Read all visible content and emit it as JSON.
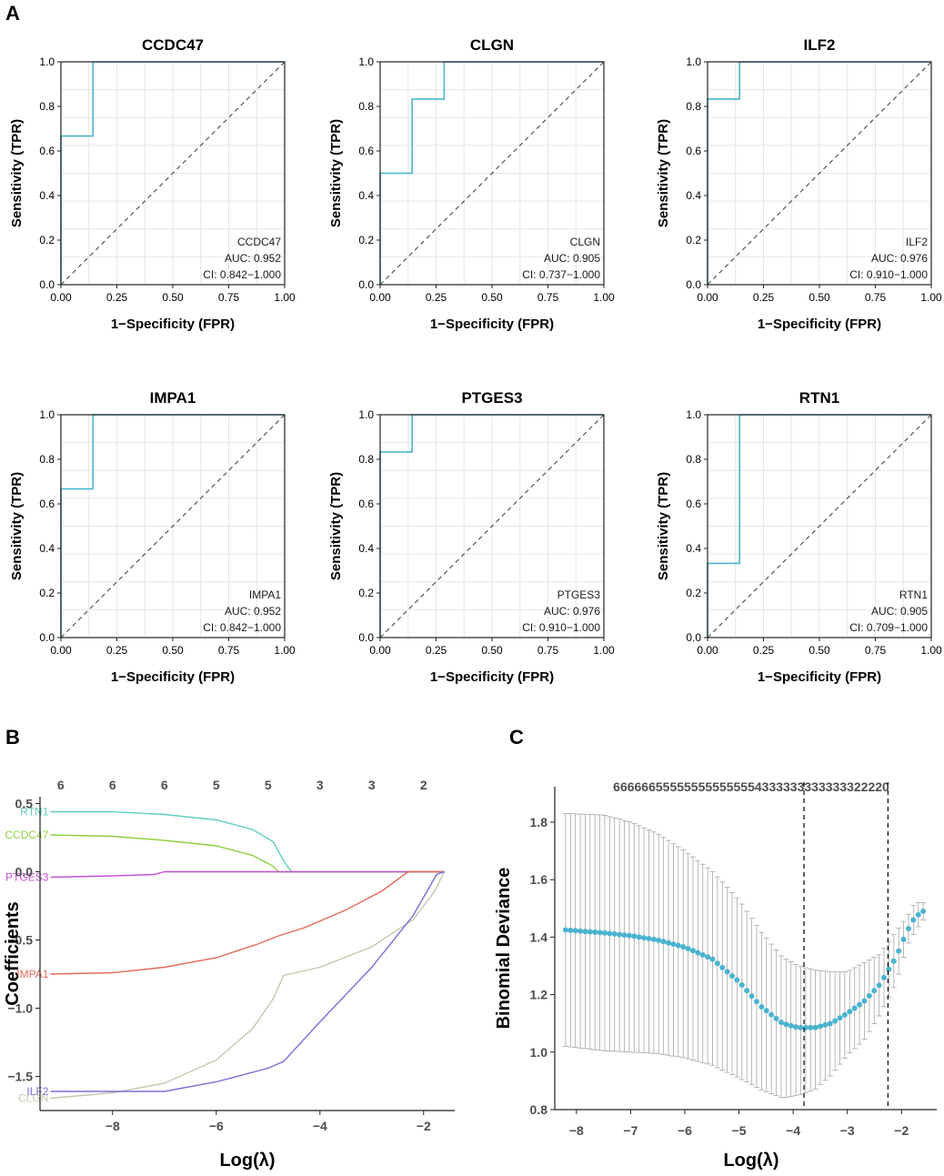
{
  "panels": {
    "a": "A",
    "b": "B",
    "c": "C"
  },
  "colors": {
    "roc": "#4ab3cf",
    "grid": "#e6e6e6",
    "cv_point": "#4ab3cf",
    "errorbar": "#a6a6a6"
  },
  "roc_common": {
    "xlabel": "1−Specificity (FPR)",
    "ylabel": "Sensitivity (TPR)",
    "xticks": [
      "0.00",
      "0.25",
      "0.50",
      "0.75",
      "1.00"
    ],
    "yticks": [
      "0.0",
      "0.2",
      "0.4",
      "0.6",
      "0.8",
      "1.0"
    ]
  },
  "chart_data": [
    {
      "type": "line",
      "title": "CCDC47",
      "gene": "CCDC47",
      "auc": "AUC: 0.952",
      "ci": "CI: 0.842−1.000",
      "xlim": [
        0,
        1
      ],
      "ylim": [
        0,
        1
      ],
      "roc": [
        [
          0,
          0
        ],
        [
          0,
          0.667
        ],
        [
          0.143,
          0.667
        ],
        [
          0.143,
          1
        ],
        [
          1,
          1
        ]
      ]
    },
    {
      "type": "line",
      "title": "CLGN",
      "gene": "CLGN",
      "auc": "AUC: 0.905",
      "ci": "CI: 0.737−1.000",
      "xlim": [
        0,
        1
      ],
      "ylim": [
        0,
        1
      ],
      "roc": [
        [
          0,
          0
        ],
        [
          0,
          0.5
        ],
        [
          0.143,
          0.5
        ],
        [
          0.143,
          0.833
        ],
        [
          0.286,
          0.833
        ],
        [
          0.286,
          1
        ],
        [
          1,
          1
        ]
      ]
    },
    {
      "type": "line",
      "title": "ILF2",
      "gene": "ILF2",
      "auc": "AUC: 0.976",
      "ci": "CI: 0.910−1.000",
      "xlim": [
        0,
        1
      ],
      "ylim": [
        0,
        1
      ],
      "roc": [
        [
          0,
          0
        ],
        [
          0,
          0.833
        ],
        [
          0.143,
          0.833
        ],
        [
          0.143,
          1
        ],
        [
          1,
          1
        ]
      ]
    },
    {
      "type": "line",
      "title": "IMPA1",
      "gene": "IMPA1",
      "auc": "AUC: 0.952",
      "ci": "CI: 0.842−1.000",
      "xlim": [
        0,
        1
      ],
      "ylim": [
        0,
        1
      ],
      "roc": [
        [
          0,
          0
        ],
        [
          0,
          0.667
        ],
        [
          0.143,
          0.667
        ],
        [
          0.143,
          1
        ],
        [
          1,
          1
        ]
      ]
    },
    {
      "type": "line",
      "title": "PTGES3",
      "gene": "PTGES3",
      "auc": "AUC: 0.976",
      "ci": "CI: 0.910−1.000",
      "xlim": [
        0,
        1
      ],
      "ylim": [
        0,
        1
      ],
      "roc": [
        [
          0,
          0
        ],
        [
          0,
          0.833
        ],
        [
          0.143,
          0.833
        ],
        [
          0.143,
          1
        ],
        [
          1,
          1
        ]
      ]
    },
    {
      "type": "line",
      "title": "RTN1",
      "gene": "RTN1",
      "auc": "AUC: 0.905",
      "ci": "CI: 0.709−1.000",
      "xlim": [
        0,
        1
      ],
      "ylim": [
        0,
        1
      ],
      "roc": [
        [
          0,
          0
        ],
        [
          0,
          0.333
        ],
        [
          0.143,
          0.333
        ],
        [
          0.143,
          1
        ],
        [
          1,
          1
        ]
      ]
    },
    {
      "type": "line",
      "title": "",
      "xlabel": "Log(λ)",
      "ylabel": "Coefficients",
      "xlim": [
        -9.4,
        -1.4
      ],
      "ylim": [
        -1.75,
        0.55
      ],
      "xticks": [
        "-8",
        "-6",
        "-4",
        "-2"
      ],
      "yticks": [
        "0.5",
        "0.0",
        "-0.5",
        "-1.0",
        "-1.5"
      ],
      "top_axis_values": [
        -9,
        -8,
        -7,
        -6,
        -5,
        -4,
        -3,
        -2
      ],
      "top_axis_labels": [
        "6",
        "6",
        "6",
        "5",
        "5",
        "3",
        "3",
        "2"
      ],
      "series": [
        {
          "name": "RTN1",
          "color": "#5fd0c0",
          "points": [
            [
              -9.2,
              0.44
            ],
            [
              -8,
              0.44
            ],
            [
              -7,
              0.42
            ],
            [
              -6,
              0.38
            ],
            [
              -5.3,
              0.31
            ],
            [
              -4.9,
              0.22
            ],
            [
              -4.7,
              0.08
            ],
            [
              -4.55,
              0
            ],
            [
              -1.6,
              0
            ]
          ]
        },
        {
          "name": "CCDC47",
          "color": "#8fd13f",
          "points": [
            [
              -9.2,
              0.27
            ],
            [
              -8,
              0.26
            ],
            [
              -7,
              0.23
            ],
            [
              -6,
              0.19
            ],
            [
              -5.3,
              0.12
            ],
            [
              -4.9,
              0.04
            ],
            [
              -4.8,
              0
            ],
            [
              -1.6,
              0
            ]
          ]
        },
        {
          "name": "PTGES3",
          "color": "#c64fd6",
          "points": [
            [
              -9.2,
              -0.04
            ],
            [
              -8,
              -0.03
            ],
            [
              -7.2,
              -0.02
            ],
            [
              -7,
              0
            ],
            [
              -1.6,
              0
            ]
          ]
        },
        {
          "name": "IMPA1",
          "color": "#e46a5a",
          "points": [
            [
              -9.2,
              -0.75
            ],
            [
              -8,
              -0.74
            ],
            [
              -7,
              -0.7
            ],
            [
              -6,
              -0.63
            ],
            [
              -5.2,
              -0.53
            ],
            [
              -4.8,
              -0.47
            ],
            [
              -4.3,
              -0.41
            ],
            [
              -3.5,
              -0.28
            ],
            [
              -2.8,
              -0.14
            ],
            [
              -2.3,
              0
            ],
            [
              -1.6,
              0
            ]
          ]
        },
        {
          "name": "CLGN",
          "color": "#c8c7b0",
          "points": [
            [
              -9.2,
              -1.66
            ],
            [
              -8,
              -1.62
            ],
            [
              -7,
              -1.55
            ],
            [
              -6,
              -1.38
            ],
            [
              -5.3,
              -1.15
            ],
            [
              -4.9,
              -0.93
            ],
            [
              -4.7,
              -0.76
            ],
            [
              -4,
              -0.7
            ],
            [
              -3,
              -0.55
            ],
            [
              -2.2,
              -0.35
            ],
            [
              -1.8,
              -0.15
            ],
            [
              -1.6,
              0
            ]
          ]
        },
        {
          "name": "ILF2",
          "color": "#7b6fd8",
          "points": [
            [
              -9.2,
              -1.61
            ],
            [
              -7,
              -1.61
            ],
            [
              -6,
              -1.54
            ],
            [
              -5,
              -1.44
            ],
            [
              -4.7,
              -1.39
            ],
            [
              -4,
              -1.1
            ],
            [
              -3,
              -0.7
            ],
            [
              -2.2,
              -0.32
            ],
            [
              -1.75,
              -0.02
            ],
            [
              -1.6,
              0
            ]
          ]
        }
      ]
    },
    {
      "type": "scatter",
      "title": "",
      "xlabel": "Log(λ)",
      "ylabel": "Binomial Deviance",
      "xlim": [
        -8.4,
        -1.35
      ],
      "ylim": [
        0.8,
        1.86
      ],
      "xticks": [
        "-8",
        "-7",
        "-6",
        "-5",
        "-4",
        "-3",
        "-2"
      ],
      "yticks": [
        "0.8",
        "1.0",
        "1.2",
        "1.4",
        "1.6",
        "1.8"
      ],
      "top_label": "666666555555555555554333333333333322220",
      "lambda_min": -3.8,
      "lambda_1se": -2.25,
      "x_start": -8.2,
      "x_end": -1.6,
      "n_points": 74,
      "series": [
        {
          "name": "mean_deviance",
          "points": [
            [
              -8.2,
              1.425
            ],
            [
              -7.5,
              1.415
            ],
            [
              -7,
              1.405
            ],
            [
              -6.5,
              1.39
            ],
            [
              -6,
              1.365
            ],
            [
              -5.5,
              1.325
            ],
            [
              -5,
              1.245
            ],
            [
              -4.6,
              1.16
            ],
            [
              -4.2,
              1.1
            ],
            [
              -3.9,
              1.085
            ],
            [
              -3.6,
              1.085
            ],
            [
              -3.3,
              1.1
            ],
            [
              -3,
              1.135
            ],
            [
              -2.7,
              1.175
            ],
            [
              -2.4,
              1.235
            ],
            [
              -2.1,
              1.33
            ],
            [
              -1.9,
              1.42
            ],
            [
              -1.75,
              1.47
            ],
            [
              -1.6,
              1.49
            ]
          ]
        },
        {
          "name": "upper",
          "points": [
            [
              -8.2,
              1.83
            ],
            [
              -7.5,
              1.825
            ],
            [
              -7,
              1.8
            ],
            [
              -6.5,
              1.76
            ],
            [
              -6,
              1.7
            ],
            [
              -5.5,
              1.63
            ],
            [
              -5,
              1.53
            ],
            [
              -4.6,
              1.42
            ],
            [
              -4.2,
              1.33
            ],
            [
              -3.9,
              1.3
            ],
            [
              -3.6,
              1.285
            ],
            [
              -3.3,
              1.28
            ],
            [
              -3,
              1.28
            ],
            [
              -2.7,
              1.31
            ],
            [
              -2.4,
              1.34
            ],
            [
              -2.1,
              1.42
            ],
            [
              -1.9,
              1.47
            ],
            [
              -1.75,
              1.52
            ],
            [
              -1.6,
              1.52
            ]
          ]
        },
        {
          "name": "lower",
          "points": [
            [
              -8.2,
              1.02
            ],
            [
              -7.5,
              1.005
            ],
            [
              -7,
              1.0
            ],
            [
              -6.5,
              0.995
            ],
            [
              -6,
              0.98
            ],
            [
              -5.5,
              0.955
            ],
            [
              -5,
              0.91
            ],
            [
              -4.6,
              0.87
            ],
            [
              -4.2,
              0.84
            ],
            [
              -3.9,
              0.85
            ],
            [
              -3.6,
              0.87
            ],
            [
              -3.3,
              0.92
            ],
            [
              -3,
              0.99
            ],
            [
              -2.7,
              1.04
            ],
            [
              -2.4,
              1.13
            ],
            [
              -2.1,
              1.24
            ],
            [
              -1.9,
              1.37
            ],
            [
              -1.75,
              1.42
            ],
            [
              -1.6,
              1.46
            ]
          ]
        }
      ]
    }
  ]
}
